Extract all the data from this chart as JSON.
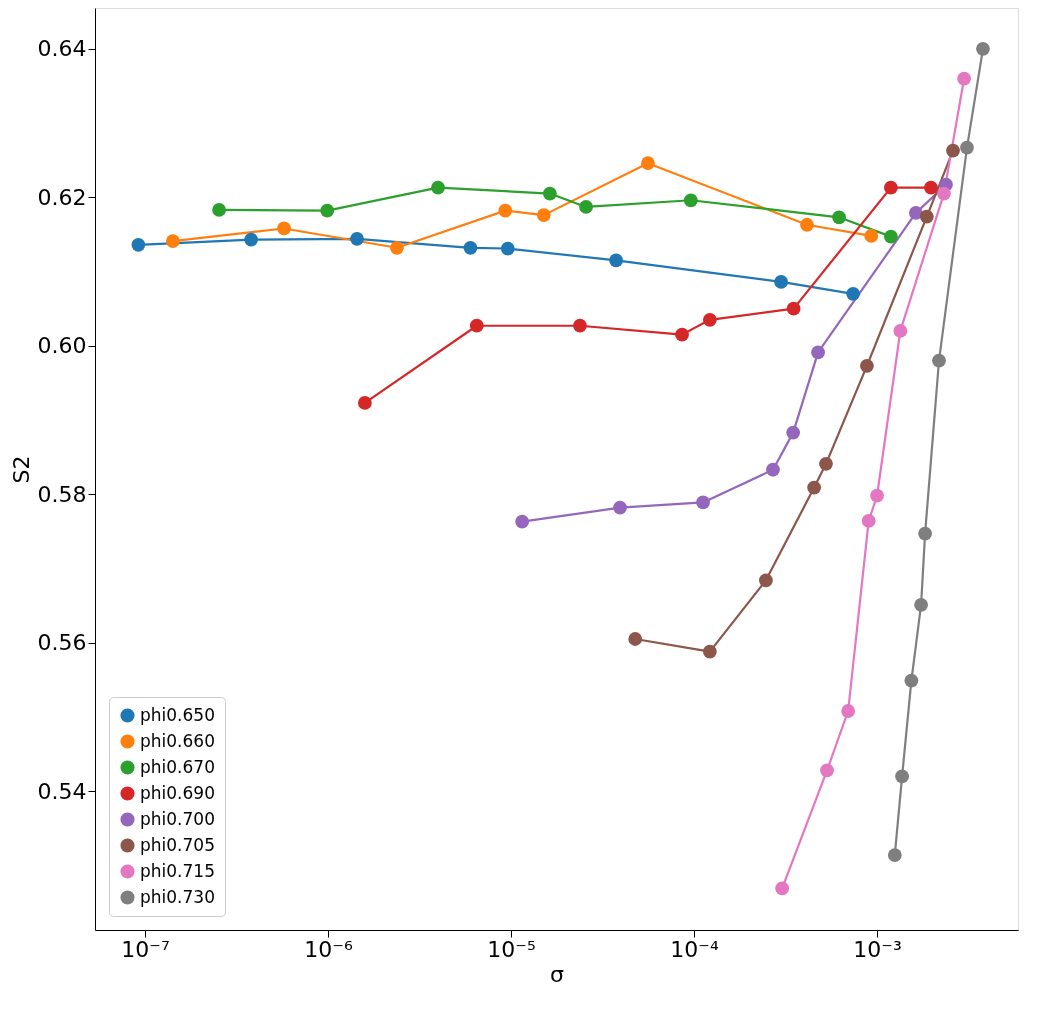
{
  "chart_data": {
    "type": "line",
    "xlabel": "σ",
    "ylabel": "S2",
    "log": "x",
    "marker": "circle",
    "line_style": "solid",
    "legend": "bottom left",
    "grid": false,
    "xlim": [
      5.33e-08,
      0.00589
    ],
    "ylim": [
      0.5213,
      0.6455
    ],
    "xticks": [
      {
        "value": 1e-07,
        "label": "10⁻⁷"
      },
      {
        "value": 1e-06,
        "label": "10⁻⁶"
      },
      {
        "value": 1e-05,
        "label": "10⁻⁵"
      },
      {
        "value": 0.0001,
        "label": "10⁻⁴"
      },
      {
        "value": 0.001,
        "label": "10⁻³"
      }
    ],
    "yticks": [
      0.54,
      0.56,
      0.58,
      {
        "value": 0.6,
        "label": "0.60"
      },
      0.62,
      0.64
    ],
    "series": [
      {
        "name": "phi0.650",
        "color": "#1f77b4",
        "x": [
          9.2e-08,
          3.8e-07,
          1.44e-06,
          6e-06,
          9.6e-06,
          3.75e-05,
          0.000299,
          0.00074
        ],
        "values": [
          0.6136,
          0.6143,
          0.6144,
          0.6132,
          0.6131,
          0.6115,
          0.6086,
          0.607
        ]
      },
      {
        "name": "phi0.660",
        "color": "#ff7f0e",
        "x": [
          1.42e-07,
          5.75e-07,
          2.38e-06,
          9.3e-06,
          1.51e-05,
          5.6e-05,
          0.000414,
          0.00093
        ],
        "values": [
          0.6141,
          0.6158,
          0.6132,
          0.6182,
          0.6176,
          0.6246,
          0.6163,
          0.6148
        ]
      },
      {
        "name": "phi0.670",
        "color": "#2ca02c",
        "x": [
          2.54e-07,
          9.9e-07,
          3.99e-06,
          1.63e-05,
          2.57e-05,
          9.6e-05,
          0.00062,
          0.00119
        ],
        "values": [
          0.6183,
          0.6182,
          0.6213,
          0.6205,
          0.6187,
          0.6196,
          0.6173,
          0.6147
        ]
      },
      {
        "name": "phi0.690",
        "color": "#d62728",
        "x": [
          1.59e-06,
          6.5e-06,
          2.38e-05,
          8.6e-05,
          0.000122,
          0.00035,
          0.00119,
          0.00197
        ],
        "values": [
          0.5923,
          0.6027,
          0.6027,
          0.6015,
          0.6035,
          0.605,
          0.6213,
          0.6213
        ]
      },
      {
        "name": "phi0.700",
        "color": "#9467bd",
        "x": [
          1.15e-05,
          3.94e-05,
          0.000112,
          0.00027,
          0.000348,
          0.000476,
          0.00163,
          0.00238
        ],
        "values": [
          0.5763,
          0.5782,
          0.5789,
          0.5833,
          0.5883,
          0.5991,
          0.6179,
          0.6217
        ]
      },
      {
        "name": "phi0.705",
        "color": "#8c564b",
        "x": [
          4.77e-05,
          0.000122,
          0.000247,
          0.000453,
          0.000526,
          0.00088,
          0.00187,
          0.0026
        ],
        "values": [
          0.5605,
          0.5588,
          0.5684,
          0.5809,
          0.5841,
          0.5973,
          0.6174,
          0.6263
        ]
      },
      {
        "name": "phi0.715",
        "color": "#e377c2",
        "x": [
          0.000303,
          0.000533,
          0.000695,
          0.0009,
          0.001,
          0.00134,
          0.00232,
          0.00299
        ],
        "values": [
          0.5269,
          0.5428,
          0.5508,
          0.5764,
          0.5798,
          0.602,
          0.6205,
          0.636
        ]
      },
      {
        "name": "phi0.730",
        "color": "#7f7f7f",
        "x": [
          0.00125,
          0.00137,
          0.00154,
          0.00174,
          0.00183,
          0.00218,
          0.0031,
          0.00379
        ],
        "values": [
          0.5314,
          0.542,
          0.5549,
          0.5651,
          0.5747,
          0.598,
          0.6267,
          0.64
        ]
      }
    ]
  }
}
